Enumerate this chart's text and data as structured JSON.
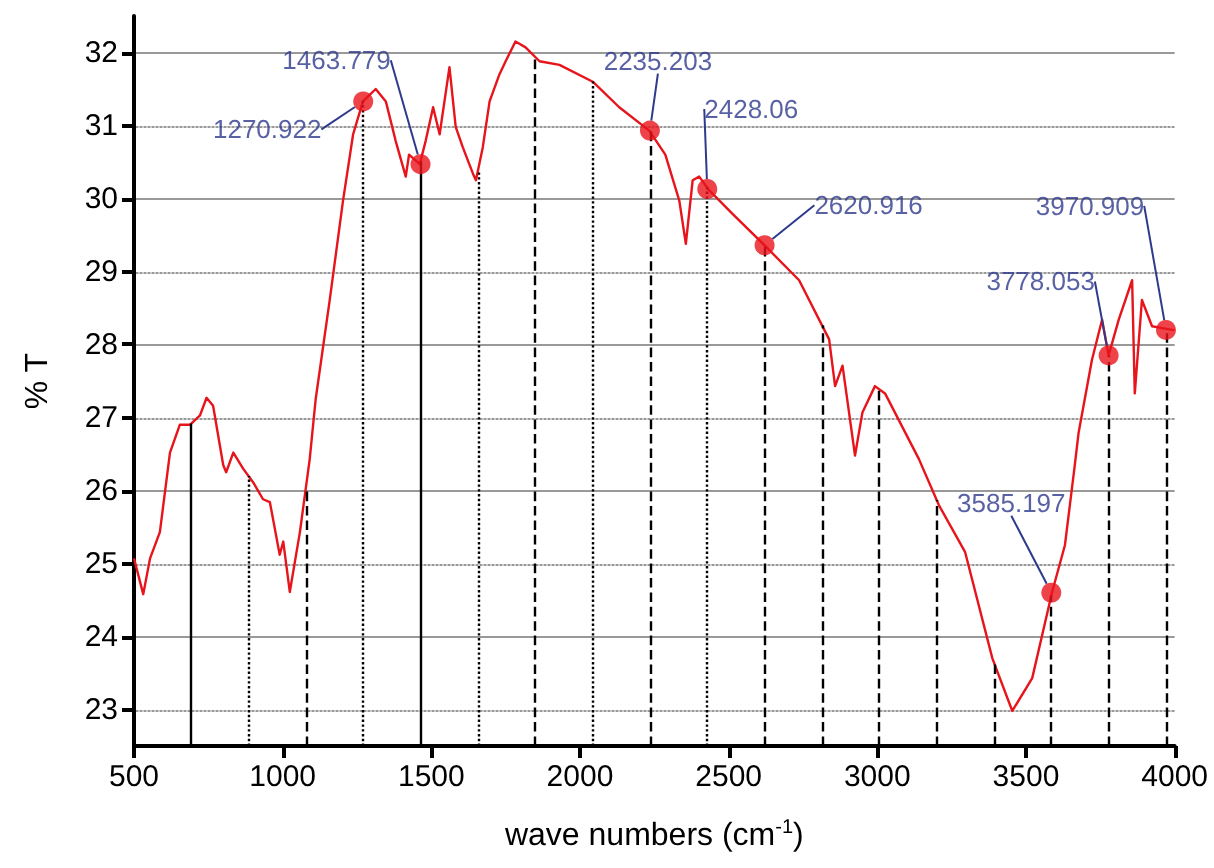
{
  "chart_data": {
    "type": "line",
    "xlabel": "wave numbers (cm$^{-1}$)",
    "ylabel": "% T",
    "xlim": [
      500,
      4000
    ],
    "xticks": [
      500,
      1000,
      1500,
      2000,
      2500,
      3000,
      3500,
      4000
    ],
    "ylim": [
      22.5,
      32.5
    ],
    "yticks": [
      23,
      24,
      25,
      26,
      27,
      28,
      29,
      30,
      31,
      32
    ],
    "grid": "y",
    "series": [
      {
        "color": "#e8141c",
        "x": [
          500,
          531,
          554,
          587,
          621,
          654,
          688,
          722,
          744,
          766,
          800,
          810,
          834,
          867,
          901,
          934,
          957,
          990,
          1002,
          1024,
          1058,
          1091,
          1111,
          1158,
          1203,
          1237,
          1270,
          1313,
          1347,
          1380,
          1414,
          1425,
          1461,
          1481,
          1506,
          1528,
          1561,
          1582,
          1606,
          1640,
          1650,
          1673,
          1696,
          1729,
          1750,
          1783,
          1817,
          1864,
          1931,
          2043,
          2132,
          2233,
          2287,
          2334,
          2356,
          2379,
          2401,
          2435,
          2513,
          2623,
          2737,
          2838,
          2858,
          2883,
          2925,
          2950,
          2992,
          3026,
          3140,
          3207,
          3295,
          3387,
          3454,
          3521,
          3588,
          3631,
          3664,
          3677,
          3722,
          3756,
          3778,
          3812,
          3857,
          3866,
          3890,
          3924,
          3991,
          4000
        ],
        "values": [
          25.07,
          24.58,
          25.07,
          25.43,
          26.52,
          26.9,
          26.9,
          27.03,
          27.27,
          27.16,
          26.35,
          26.25,
          26.52,
          26.3,
          26.11,
          25.88,
          25.84,
          25.12,
          25.3,
          24.61,
          25.43,
          26.43,
          27.25,
          28.6,
          29.97,
          30.88,
          31.33,
          31.5,
          31.33,
          30.79,
          30.3,
          30.6,
          30.47,
          30.79,
          31.25,
          30.88,
          31.8,
          30.98,
          30.7,
          30.34,
          30.25,
          30.7,
          31.33,
          31.7,
          31.88,
          32.15,
          32.07,
          31.88,
          31.83,
          31.6,
          31.25,
          30.93,
          30.6,
          29.97,
          29.38,
          30.25,
          30.3,
          30.11,
          29.79,
          29.35,
          28.88,
          28.07,
          27.43,
          27.71,
          26.48,
          27.07,
          27.43,
          27.33,
          26.43,
          25.8,
          25.16,
          23.7,
          22.98,
          23.43,
          24.61,
          25.25,
          26.34,
          26.79,
          27.79,
          28.34,
          27.85,
          28.34,
          28.88,
          27.33,
          28.61,
          28.25,
          28.2,
          28.2
        ]
      }
    ],
    "annotations": [
      {
        "text": "1270.922",
        "x": 1270.922,
        "y": 31.33
      },
      {
        "text": "1463.779",
        "x": 1463.779,
        "y": 30.47
      },
      {
        "text": "2235.203",
        "x": 2235.203,
        "y": 30.93
      },
      {
        "text": "2428.06",
        "x": 2428.06,
        "y": 30.13
      },
      {
        "text": "2620.916",
        "x": 2620.916,
        "y": 29.36
      },
      {
        "text": "3585.197",
        "x": 3585.197,
        "y": 24.6
      },
      {
        "text": "3778.053",
        "x": 3778.053,
        "y": 27.85
      },
      {
        "text": "3970.909",
        "x": 3970.909,
        "y": 28.2
      }
    ],
    "ref_lines": [
      {
        "axis": "x",
        "value": 692.351,
        "color": "#000000",
        "line_style": "solid"
      },
      {
        "axis": "x",
        "value": 885.208,
        "color": "#000000",
        "line_style": "dotted"
      },
      {
        "axis": "x",
        "value": 1078.065,
        "color": "#000000",
        "line_style": "dashed"
      },
      {
        "axis": "x",
        "value": 1270.922,
        "color": "#000000",
        "line_style": "dotted"
      },
      {
        "axis": "x",
        "value": 1463.779,
        "color": "#000000",
        "line_style": "solid"
      },
      {
        "axis": "x",
        "value": 1656.636,
        "color": "#000000",
        "line_style": "dotted"
      },
      {
        "axis": "x",
        "value": 1849.493,
        "color": "#000000",
        "line_style": "dashed"
      },
      {
        "axis": "x",
        "value": 2042.35,
        "color": "#000000",
        "line_style": "dotted"
      },
      {
        "axis": "x",
        "value": 2235.203,
        "color": "#000000",
        "line_style": "dashed"
      },
      {
        "axis": "x",
        "value": 2428.06,
        "color": "#000000",
        "line_style": "dotted"
      },
      {
        "axis": "x",
        "value": 2620.916,
        "color": "#000000",
        "line_style": "dashed"
      },
      {
        "axis": "x",
        "value": 2813.773,
        "color": "#000000",
        "line_style": "dashed"
      },
      {
        "axis": "x",
        "value": 3006.63,
        "color": "#000000",
        "line_style": "dashed"
      },
      {
        "axis": "x",
        "value": 3199.487,
        "color": "#000000",
        "line_style": "dashed"
      },
      {
        "axis": "x",
        "value": 3392.344,
        "color": "#000000",
        "line_style": "dashed"
      },
      {
        "axis": "x",
        "value": 3585.197,
        "color": "#000000",
        "line_style": "dashed"
      },
      {
        "axis": "x",
        "value": 3778.053,
        "color": "#000000",
        "line_style": "dashed"
      },
      {
        "axis": "x",
        "value": 3970.909,
        "color": "#000000",
        "line_style": "dashed"
      }
    ]
  }
}
